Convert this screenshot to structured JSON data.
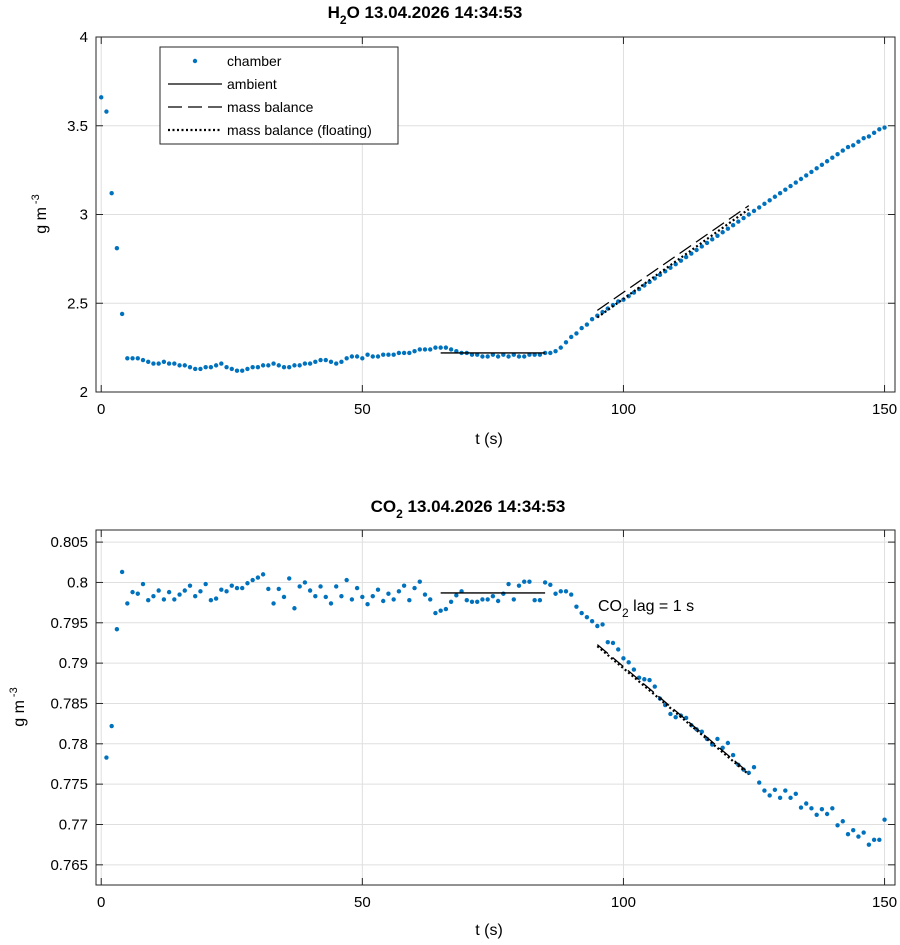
{
  "chart_data": [
    {
      "type": "scatter",
      "title": "H₂O  13.04.2026 14:34:53",
      "title_main": "H",
      "title_sub": "2",
      "title_rest": "O  13.04.2026 14:34:53",
      "xlabel": "t (s)",
      "ylabel_base": "g m",
      "ylabel_sup": "-3",
      "xlim": [
        -1,
        152
      ],
      "ylim": [
        2,
        4
      ],
      "xticks": [
        0,
        50,
        100,
        150
      ],
      "xtick_labels": [
        "0",
        "50",
        "100",
        "150"
      ],
      "yticks": [
        2,
        2.5,
        3,
        3.5,
        4
      ],
      "ytick_labels": [
        "2",
        "2.5",
        "3",
        "3.5",
        "4"
      ],
      "grid": true,
      "legend_position": "top-left",
      "legend": [
        {
          "label": "chamber",
          "style": "dots"
        },
        {
          "label": "ambient",
          "style": "solid"
        },
        {
          "label": "mass balance",
          "style": "dashed"
        },
        {
          "label": "mass balance (floating)",
          "style": "dotted"
        }
      ],
      "series": [
        {
          "name": "chamber",
          "style": "dots",
          "color": "#0072BD",
          "x": [
            0,
            1,
            2,
            3,
            4,
            5,
            6,
            7,
            8,
            9,
            10,
            11,
            12,
            13,
            14,
            15,
            16,
            17,
            18,
            19,
            20,
            21,
            22,
            23,
            24,
            25,
            26,
            27,
            28,
            29,
            30,
            31,
            32,
            33,
            34,
            35,
            36,
            37,
            38,
            39,
            40,
            41,
            42,
            43,
            44,
            45,
            46,
            47,
            48,
            49,
            50,
            51,
            52,
            53,
            54,
            55,
            56,
            57,
            58,
            59,
            60,
            61,
            62,
            63,
            64,
            65,
            66,
            67,
            68,
            69,
            70,
            71,
            72,
            73,
            74,
            75,
            76,
            77,
            78,
            79,
            80,
            81,
            82,
            83,
            84,
            85,
            86,
            87,
            88,
            89,
            90,
            91,
            92,
            93,
            94,
            95,
            96,
            97,
            98,
            99,
            100,
            101,
            102,
            103,
            104,
            105,
            106,
            107,
            108,
            109,
            110,
            111,
            112,
            113,
            114,
            115,
            116,
            117,
            118,
            119,
            120,
            121,
            122,
            123,
            124,
            125,
            126,
            127,
            128,
            129,
            130,
            131,
            132,
            133,
            134,
            135,
            136,
            137,
            138,
            139,
            140,
            141,
            142,
            143,
            144,
            145,
            146,
            147,
            148,
            149,
            150
          ],
          "y": [
            3.66,
            3.58,
            3.12,
            2.81,
            2.44,
            2.19,
            2.19,
            2.19,
            2.18,
            2.17,
            2.16,
            2.16,
            2.17,
            2.16,
            2.16,
            2.15,
            2.15,
            2.14,
            2.13,
            2.13,
            2.14,
            2.14,
            2.15,
            2.16,
            2.14,
            2.13,
            2.12,
            2.12,
            2.13,
            2.14,
            2.14,
            2.15,
            2.15,
            2.16,
            2.15,
            2.14,
            2.14,
            2.15,
            2.15,
            2.16,
            2.16,
            2.17,
            2.18,
            2.18,
            2.17,
            2.16,
            2.17,
            2.19,
            2.2,
            2.2,
            2.19,
            2.21,
            2.2,
            2.2,
            2.21,
            2.21,
            2.21,
            2.22,
            2.22,
            2.22,
            2.23,
            2.24,
            2.24,
            2.24,
            2.25,
            2.25,
            2.25,
            2.24,
            2.23,
            2.22,
            2.22,
            2.21,
            2.21,
            2.2,
            2.2,
            2.21,
            2.2,
            2.21,
            2.2,
            2.21,
            2.2,
            2.2,
            2.21,
            2.21,
            2.21,
            2.22,
            2.22,
            2.23,
            2.25,
            2.28,
            2.31,
            2.33,
            2.36,
            2.38,
            2.41,
            2.43,
            2.45,
            2.47,
            2.49,
            2.51,
            2.52,
            2.54,
            2.56,
            2.58,
            2.6,
            2.62,
            2.64,
            2.66,
            2.68,
            2.7,
            2.72,
            2.74,
            2.76,
            2.78,
            2.8,
            2.82,
            2.84,
            2.86,
            2.88,
            2.9,
            2.92,
            2.94,
            2.96,
            2.98,
            3.0,
            3.02,
            3.04,
            3.06,
            3.08,
            3.1,
            3.12,
            3.14,
            3.16,
            3.18,
            3.2,
            3.22,
            3.24,
            3.26,
            3.28,
            3.3,
            3.32,
            3.34,
            3.36,
            3.38,
            3.39,
            3.41,
            3.43,
            3.44,
            3.46,
            3.48,
            3.49
          ]
        },
        {
          "name": "ambient",
          "style": "solid",
          "x": [
            65,
            85
          ],
          "y": [
            2.22,
            2.22
          ]
        },
        {
          "name": "mass balance",
          "style": "dashed",
          "x": [
            95,
            124
          ],
          "y": [
            2.46,
            3.05
          ]
        },
        {
          "name": "mass balance (floating)",
          "style": "dotted",
          "x": [
            95,
            124
          ],
          "y": [
            2.42,
            3.03
          ]
        }
      ]
    },
    {
      "type": "scatter",
      "title": "CO₂  13.04.2026 14:34:53",
      "title_main": "CO",
      "title_sub": "2",
      "title_rest": "  13.04.2026 14:34:53",
      "xlabel": "t (s)",
      "ylabel_base": "g m",
      "ylabel_sup": "-3",
      "xlim": [
        -1,
        152
      ],
      "ylim": [
        0.7625,
        0.8065
      ],
      "xticks": [
        0,
        50,
        100,
        150
      ],
      "xtick_labels": [
        "0",
        "50",
        "100",
        "150"
      ],
      "yticks": [
        0.765,
        0.77,
        0.775,
        0.78,
        0.785,
        0.79,
        0.795,
        0.8,
        0.805
      ],
      "ytick_labels": [
        "0.765",
        "0.77",
        "0.775",
        "0.78",
        "0.785",
        "0.79",
        "0.795",
        "0.8",
        "0.805"
      ],
      "grid": true,
      "annotation": {
        "main": "CO",
        "sub": "2",
        "rest": " lag = 1 s",
        "x": 95,
        "y": 0.7968
      },
      "series": [
        {
          "name": "chamber",
          "style": "dots",
          "color": "#0072BD",
          "x": [
            1,
            2,
            3,
            4,
            5,
            6,
            7,
            8,
            9,
            10,
            11,
            12,
            13,
            14,
            15,
            16,
            17,
            18,
            19,
            20,
            21,
            22,
            23,
            24,
            25,
            26,
            27,
            28,
            29,
            30,
            31,
            32,
            33,
            34,
            35,
            36,
            37,
            38,
            39,
            40,
            41,
            42,
            43,
            44,
            45,
            46,
            47,
            48,
            49,
            50,
            51,
            52,
            53,
            54,
            55,
            56,
            57,
            58,
            59,
            60,
            61,
            62,
            63,
            64,
            65,
            66,
            67,
            68,
            69,
            70,
            71,
            72,
            73,
            74,
            75,
            76,
            77,
            78,
            79,
            80,
            81,
            82,
            83,
            84,
            85,
            86,
            87,
            88,
            89,
            90,
            91,
            92,
            93,
            94,
            95,
            96,
            97,
            98,
            99,
            100,
            101,
            102,
            103,
            104,
            105,
            106,
            107,
            108,
            109,
            110,
            111,
            112,
            113,
            114,
            115,
            116,
            117,
            118,
            119,
            120,
            121,
            122,
            123,
            124,
            125,
            126,
            127,
            128,
            129,
            130,
            131,
            132,
            133,
            134,
            135,
            136,
            137,
            138,
            139,
            140,
            141,
            142,
            143,
            144,
            145,
            146,
            147,
            148,
            149,
            150
          ],
          "y": [
            0.7783,
            0.7822,
            0.7942,
            0.8013,
            0.7974,
            0.7988,
            0.7986,
            0.7998,
            0.7978,
            0.7983,
            0.799,
            0.7979,
            0.7988,
            0.7979,
            0.7985,
            0.799,
            0.7996,
            0.7983,
            0.7989,
            0.7998,
            0.7978,
            0.798,
            0.7991,
            0.7989,
            0.7996,
            0.7993,
            0.7993,
            0.7999,
            0.8003,
            0.8006,
            0.801,
            0.7992,
            0.7974,
            0.7992,
            0.7982,
            0.8005,
            0.7968,
            0.7995,
            0.8,
            0.799,
            0.7983,
            0.7995,
            0.7982,
            0.7974,
            0.7995,
            0.7983,
            0.8003,
            0.7979,
            0.7993,
            0.7982,
            0.7973,
            0.7983,
            0.7991,
            0.7977,
            0.7986,
            0.7979,
            0.7989,
            0.7996,
            0.7978,
            0.7993,
            0.8001,
            0.7985,
            0.7979,
            0.7962,
            0.7965,
            0.7967,
            0.7976,
            0.7984,
            0.7989,
            0.7978,
            0.7976,
            0.7976,
            0.7979,
            0.7979,
            0.7983,
            0.7977,
            0.7986,
            0.7998,
            0.7979,
            0.7996,
            0.8001,
            0.8001,
            0.7978,
            0.7978,
            0.8,
            0.7997,
            0.7986,
            0.7989,
            0.7989,
            0.7985,
            0.797,
            0.7962,
            0.7957,
            0.7952,
            0.7946,
            0.7948,
            0.7926,
            0.7925,
            0.7917,
            0.7906,
            0.7901,
            0.7892,
            0.7882,
            0.788,
            0.7879,
            0.7871,
            0.7856,
            0.7848,
            0.7837,
            0.7833,
            0.7835,
            0.7832,
            0.7823,
            0.7818,
            0.7815,
            0.7806,
            0.7799,
            0.7806,
            0.7795,
            0.7801,
            0.7786,
            0.7774,
            0.7768,
            0.7764,
            0.7771,
            0.7752,
            0.7742,
            0.7736,
            0.7743,
            0.7733,
            0.7742,
            0.7733,
            0.7738,
            0.7721,
            0.7726,
            0.772,
            0.7712,
            0.7719,
            0.7713,
            0.772,
            0.7699,
            0.7704,
            0.7688,
            0.7693,
            0.7685,
            0.769,
            0.7675,
            0.7681,
            0.7681,
            0.7706
          ]
        },
        {
          "name": "ambient",
          "style": "solid",
          "x": [
            65,
            85
          ],
          "y": [
            0.7987,
            0.7987
          ]
        },
        {
          "name": "mass balance",
          "style": "dashed",
          "x": [
            95,
            124
          ],
          "y": [
            0.7923,
            0.7764
          ]
        },
        {
          "name": "mass balance (floating)",
          "style": "dotted",
          "x": [
            95,
            124
          ],
          "y": [
            0.7921,
            0.7762
          ]
        }
      ]
    }
  ]
}
